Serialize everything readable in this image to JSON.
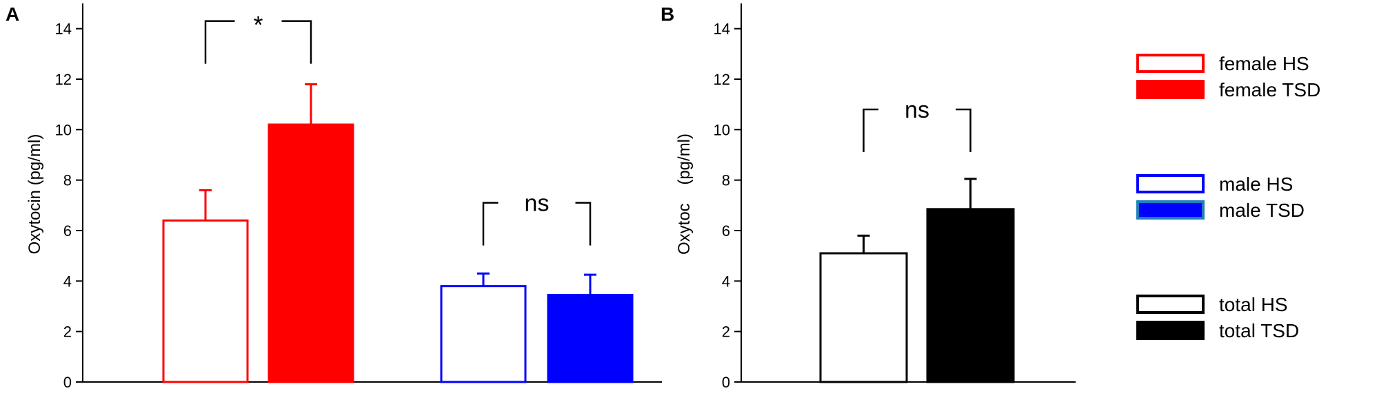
{
  "panels": [
    {
      "id": "A",
      "label": "A",
      "ylabel": "Oxytocin (pg/ml)"
    },
    {
      "id": "B",
      "label": "B",
      "ylabel": "Oxytoc    (pg/ml)"
    }
  ],
  "legend": {
    "placement": "right",
    "items": [
      {
        "label": "female HS",
        "style": "open",
        "color": "#ff0000"
      },
      {
        "label": "female TSD",
        "style": "filled",
        "color": "#ff0000"
      },
      {
        "label": "male HS",
        "style": "open",
        "color": "#0000ff"
      },
      {
        "label": "male TSD",
        "style": "filled",
        "color": "#0000ff",
        "edge": "#1f7fbf"
      },
      {
        "label": "total HS",
        "style": "open",
        "color": "#000000"
      },
      {
        "label": "total TSD",
        "style": "filled",
        "color": "#000000"
      }
    ]
  },
  "chart_data": [
    {
      "panel": "A",
      "type": "bar",
      "ylabel": "Oxytocin (pg/ml)",
      "ylim": [
        0,
        15
      ],
      "yticks": [
        0,
        2,
        4,
        6,
        8,
        10,
        12,
        14
      ],
      "grid": false,
      "bars": [
        {
          "series": "female HS",
          "value": 6.4,
          "error": 1.2,
          "color": "#ff0000",
          "filled": false
        },
        {
          "series": "female TSD",
          "value": 10.2,
          "error": 1.6,
          "color": "#ff0000",
          "filled": true
        },
        {
          "series": "male HS",
          "value": 3.8,
          "error": 0.5,
          "color": "#0000ff",
          "filled": false
        },
        {
          "series": "male TSD",
          "value": 3.45,
          "error": 0.8,
          "color": "#0000ff",
          "filled": true
        }
      ],
      "comparisons": [
        {
          "between": [
            0,
            1
          ],
          "label": "*",
          "y": 14.3
        },
        {
          "between": [
            2,
            3
          ],
          "label": "ns",
          "y": 7.1
        }
      ]
    },
    {
      "panel": "B",
      "type": "bar",
      "ylabel": "Oxytoc    (pg/ml)",
      "ylim": [
        0,
        15
      ],
      "yticks": [
        0,
        2,
        4,
        6,
        8,
        10,
        12,
        14
      ],
      "grid": false,
      "bars": [
        {
          "series": "total HS",
          "value": 5.1,
          "error": 0.7,
          "color": "#000000",
          "filled": false
        },
        {
          "series": "total TSD",
          "value": 6.85,
          "error": 1.2,
          "color": "#000000",
          "filled": true
        }
      ],
      "comparisons": [
        {
          "between": [
            0,
            1
          ],
          "label": "ns",
          "y": 10.8
        }
      ]
    }
  ]
}
